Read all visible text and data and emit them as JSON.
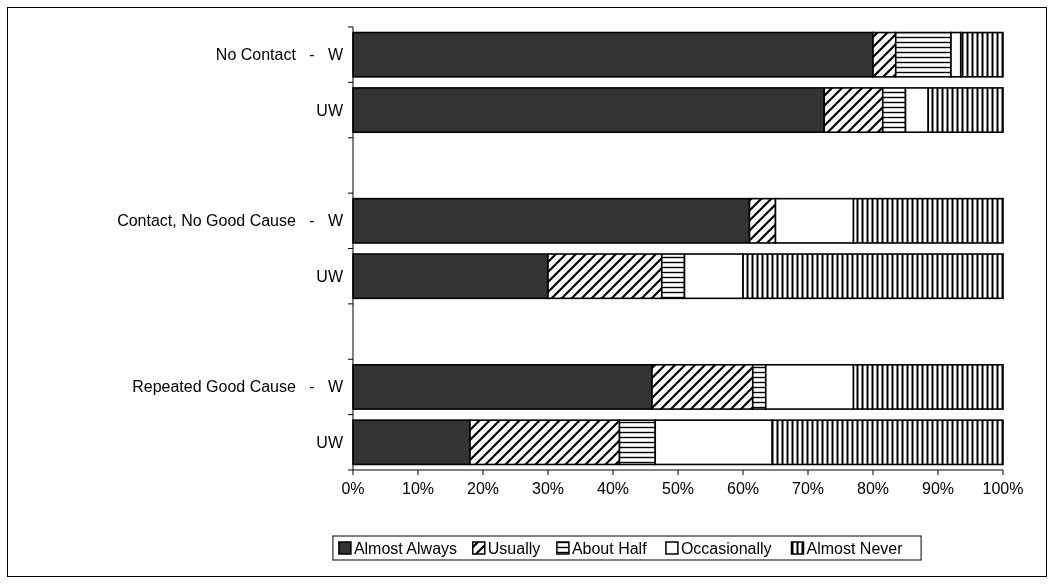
{
  "chart_data": {
    "type": "bar",
    "orientation": "horizontal",
    "stacked": true,
    "categories": [
      "No Contact   -   W",
      "UW",
      null,
      "Contact, No Good Cause   -   W",
      "UW",
      null,
      "Repeated Good Cause   -   W",
      "UW"
    ],
    "series": [
      {
        "name": "Almost Always",
        "color": "#333333",
        "values": [
          80,
          72.5,
          null,
          61,
          30,
          null,
          46,
          18
        ]
      },
      {
        "name": "Usually",
        "color": "#000000",
        "values": [
          3.5,
          9,
          null,
          4,
          17.5,
          null,
          15.5,
          23
        ]
      },
      {
        "name": "About Half",
        "color": "#000000",
        "values": [
          8.5,
          3.5,
          null,
          0,
          3.5,
          null,
          2,
          5.5
        ]
      },
      {
        "name": "Occasionally",
        "color": "#ffffff",
        "values": [
          1.5,
          3.5,
          null,
          12,
          9,
          null,
          13.5,
          18
        ]
      },
      {
        "name": "Almost Never",
        "color": "#000000",
        "values": [
          6.5,
          11.5,
          null,
          23,
          40,
          null,
          23,
          35.5
        ]
      }
    ],
    "xlim": [
      0,
      100
    ],
    "xticks": [
      {
        "value": 0,
        "label": "0%"
      },
      {
        "value": 10,
        "label": "10%"
      },
      {
        "value": 20,
        "label": "20%"
      },
      {
        "value": 30,
        "label": "30%"
      },
      {
        "value": 40,
        "label": "40%"
      },
      {
        "value": 50,
        "label": "50%"
      },
      {
        "value": 60,
        "label": "60%"
      },
      {
        "value": 70,
        "label": "70%"
      },
      {
        "value": 80,
        "label": "80%"
      },
      {
        "value": 90,
        "label": "90%"
      },
      {
        "value": 100,
        "label": "100%"
      }
    ],
    "grid": false,
    "legend": "bottom"
  }
}
